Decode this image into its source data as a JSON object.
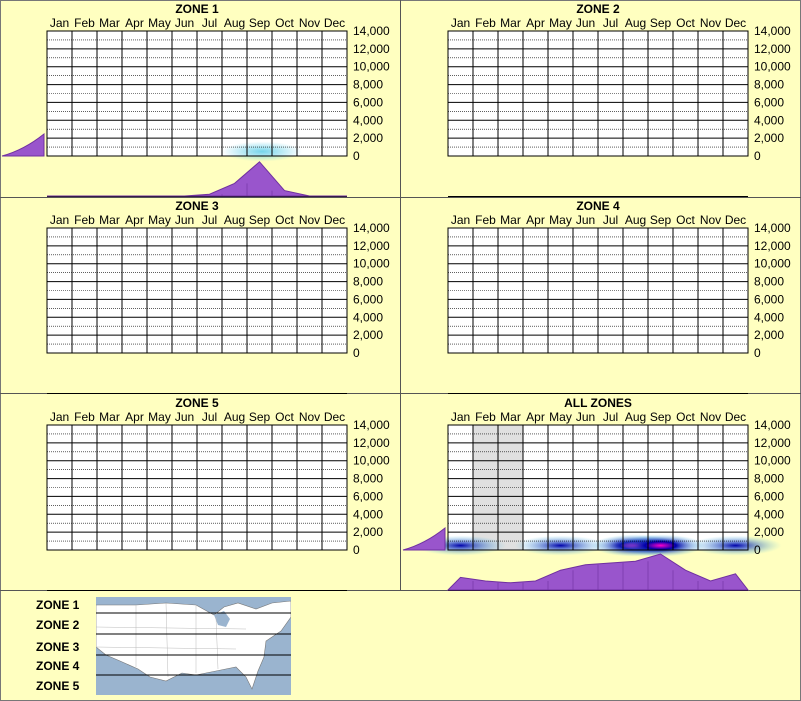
{
  "months": [
    "Jan",
    "Feb",
    "Mar",
    "Apr",
    "May",
    "Jun",
    "Jul",
    "Aug",
    "Sep",
    "Oct",
    "Nov",
    "Dec"
  ],
  "y_ticks": [
    "14,000",
    "12,000",
    "10,000",
    "8,000",
    "6,000",
    "4,000",
    "2,000",
    "0"
  ],
  "y_range": [
    0,
    14000
  ],
  "colors": {
    "background": "#ffffc0",
    "grid": "#000000",
    "histogram": "#9955cc",
    "density_low": "#66d0e8",
    "density_high": "#0000aa",
    "density_peak": "#ff00cc",
    "shaded_months": "#e0e0e0"
  },
  "chart_data": [
    {
      "type": "heatmap",
      "title": "ZONE 1",
      "x_categories": [
        "Jan",
        "Feb",
        "Mar",
        "Apr",
        "May",
        "Jun",
        "Jul",
        "Aug",
        "Sep",
        "Oct",
        "Nov",
        "Dec"
      ],
      "ylim": [
        0,
        14000
      ],
      "density": [
        {
          "month": 8.6,
          "elevation": 500,
          "intensity": 0.6
        }
      ],
      "month_histogram": [
        0,
        0,
        0,
        0,
        0,
        0,
        0.05,
        0.35,
        0.95,
        0.15,
        0,
        0
      ],
      "elevation_histogram_visible": true,
      "shaded_months": []
    },
    {
      "type": "heatmap",
      "title": "ZONE 2",
      "x_categories": [
        "Jan",
        "Feb",
        "Mar",
        "Apr",
        "May",
        "Jun",
        "Jul",
        "Aug",
        "Sep",
        "Oct",
        "Nov",
        "Dec"
      ],
      "ylim": [
        0,
        14000
      ],
      "density": [],
      "month_histogram": [],
      "elevation_histogram_visible": false,
      "shaded_months": []
    },
    {
      "type": "heatmap",
      "title": "ZONE 3",
      "x_categories": [
        "Jan",
        "Feb",
        "Mar",
        "Apr",
        "May",
        "Jun",
        "Jul",
        "Aug",
        "Sep",
        "Oct",
        "Nov",
        "Dec"
      ],
      "ylim": [
        0,
        14000
      ],
      "density": [],
      "month_histogram": [],
      "elevation_histogram_visible": false,
      "shaded_months": []
    },
    {
      "type": "heatmap",
      "title": "ZONE 4",
      "x_categories": [
        "Jan",
        "Feb",
        "Mar",
        "Apr",
        "May",
        "Jun",
        "Jul",
        "Aug",
        "Sep",
        "Oct",
        "Nov",
        "Dec"
      ],
      "ylim": [
        0,
        14000
      ],
      "density": [],
      "month_histogram": [],
      "elevation_histogram_visible": false,
      "shaded_months": []
    },
    {
      "type": "heatmap",
      "title": "ZONE 5",
      "x_categories": [
        "Jan",
        "Feb",
        "Mar",
        "Apr",
        "May",
        "Jun",
        "Jul",
        "Aug",
        "Sep",
        "Oct",
        "Nov",
        "Dec"
      ],
      "ylim": [
        0,
        14000
      ],
      "density": [],
      "month_histogram": [],
      "elevation_histogram_visible": false,
      "shaded_months": []
    },
    {
      "type": "heatmap",
      "title": "ALL ZONES",
      "x_categories": [
        "Jan",
        "Feb",
        "Mar",
        "Apr",
        "May",
        "Jun",
        "Jul",
        "Aug",
        "Sep",
        "Oct",
        "Nov",
        "Dec"
      ],
      "ylim": [
        0,
        14000
      ],
      "density": [
        {
          "month": 0.5,
          "elevation": 500,
          "intensity": 0.5
        },
        {
          "month": 4.5,
          "elevation": 500,
          "intensity": 0.6
        },
        {
          "month": 7.5,
          "elevation": 500,
          "intensity": 0.9
        },
        {
          "month": 8.5,
          "elevation": 500,
          "intensity": 1.0
        },
        {
          "month": 11.5,
          "elevation": 500,
          "intensity": 0.6
        }
      ],
      "month_histogram": [
        0.35,
        0.25,
        0.2,
        0.25,
        0.55,
        0.7,
        0.75,
        0.8,
        1.0,
        0.55,
        0.25,
        0.45
      ],
      "elevation_histogram_visible": true,
      "shaded_months": [
        "Feb",
        "Mar"
      ]
    }
  ],
  "legend": {
    "zones": [
      "ZONE 1",
      "ZONE 2",
      "ZONE 3",
      "ZONE 4",
      "ZONE 5"
    ],
    "map": "us-map-with-zone-bands"
  }
}
